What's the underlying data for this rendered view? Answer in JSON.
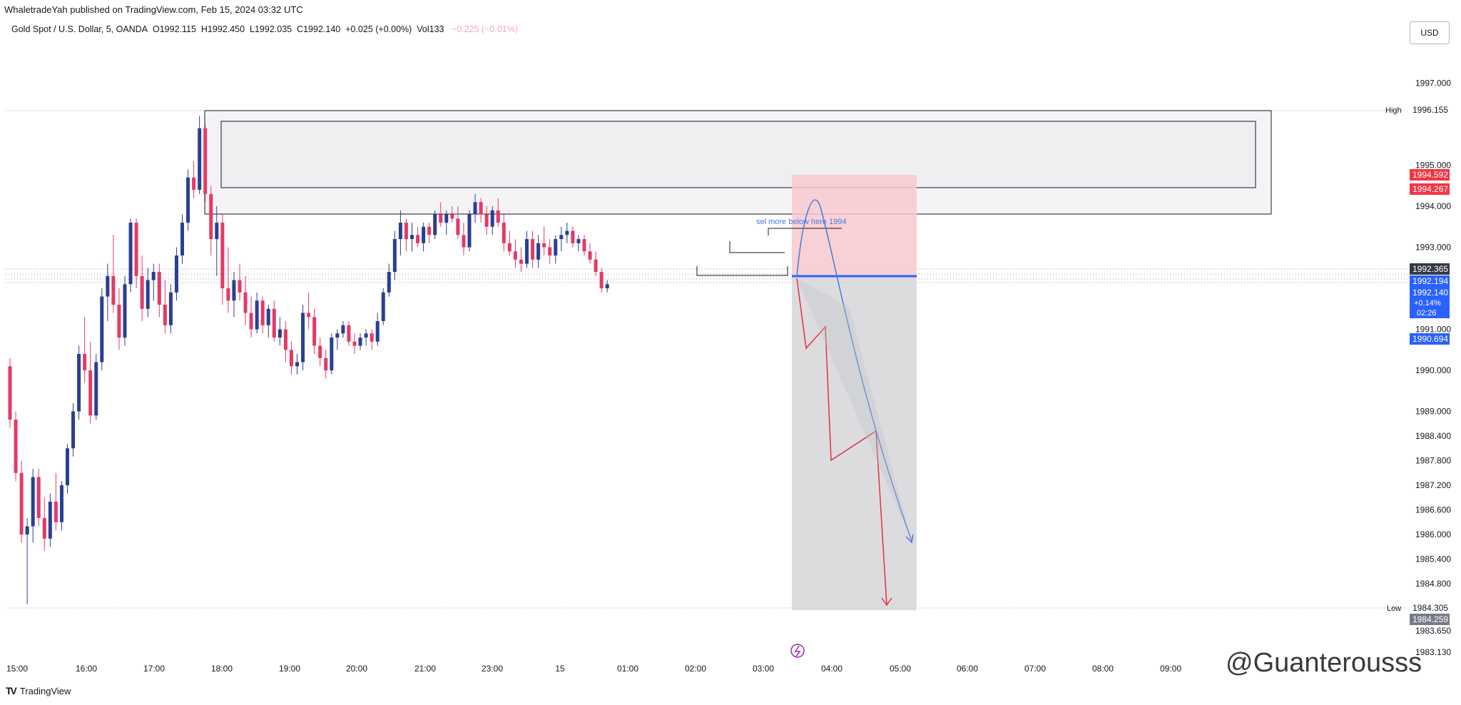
{
  "header": {
    "published": "WhaletradeYah published on TradingView.com, Feb 15, 2024 03:32 UTC",
    "symbol": "Gold Spot / U.S. Dollar, 5, OANDA",
    "open": "O1992.115",
    "high": "H1992.450",
    "low": "L1992.035",
    "close": "C1992.140",
    "change": "+0.025 (+0.00%)",
    "volume": "Vol133",
    "vol_change": "−0.225 (−0.01%)"
  },
  "currency_button": "USD",
  "footer": {
    "brand": "TradingView",
    "logo": "TV"
  },
  "watermark": "@Guanterousss",
  "chart_data": {
    "type": "candlestick",
    "timeframe": "5",
    "y_ticks": [
      1997.0,
      1995.0,
      1994.0,
      1993.0,
      1991.0,
      1990.0,
      1989.0,
      1988.4,
      1987.8,
      1987.2,
      1986.6,
      1986.0,
      1985.4,
      1984.8,
      1983.65,
      1983.13
    ],
    "y_tick_labels": [
      "1997.000",
      "1995.000",
      "1994.000",
      "1993.000",
      "1991.000",
      "1990.000",
      "1989.000",
      "1988.400",
      "1987.800",
      "1987.200",
      "1986.600",
      "1986.000",
      "1985.400",
      "1984.800",
      "1983.650",
      "1983.130"
    ],
    "x_labels": [
      "15:00",
      "16:00",
      "17:00",
      "18:00",
      "19:00",
      "20:00",
      "21:00",
      "23:00",
      "15",
      "01:00",
      "02:00",
      "03:00",
      "04:00",
      "05:00",
      "06:00",
      "07:00",
      "08:00",
      "09:00"
    ],
    "high_label": "High",
    "high_value": "1996.155",
    "low_label": "Low",
    "low_value": "1984.305",
    "low_value_2": "1984.259",
    "price_labels": [
      {
        "value": "1994.592",
        "color": "#f23645"
      },
      {
        "value": "1994.267",
        "color": "#f23645"
      },
      {
        "value": "1992.365",
        "color": "#363a45"
      },
      {
        "value": "1992.194",
        "color": "#2962ff"
      },
      {
        "value": "1992.140",
        "color": "#2962ff"
      },
      {
        "value": "1990.694",
        "color": "#2962ff"
      }
    ],
    "current_price": {
      "value": "1992.140",
      "change": "+0.14%",
      "countdown": "02:26"
    },
    "annotation": "sel more below here 1994",
    "colors": {
      "up": "#2a3f92",
      "down": "#e33a66",
      "blue_line": "#2962ff",
      "stop_zone": "#f7c9cf",
      "target_zone": "#d6d6d8",
      "red_path": "#e03145",
      "blue_path": "#4a78e0"
    },
    "candles": [
      [
        1990.1,
        1990.3,
        1988.6,
        1988.8
      ],
      [
        1988.8,
        1989.0,
        1987.3,
        1987.5
      ],
      [
        1987.5,
        1987.8,
        1985.8,
        1986.0
      ],
      [
        1986.0,
        1986.4,
        1984.3,
        1986.2
      ],
      [
        1986.2,
        1987.6,
        1985.8,
        1987.4
      ],
      [
        1987.4,
        1987.6,
        1986.2,
        1986.4
      ],
      [
        1986.4,
        1986.9,
        1985.6,
        1985.9
      ],
      [
        1985.9,
        1987.0,
        1985.7,
        1986.8
      ],
      [
        1986.8,
        1987.5,
        1986.1,
        1986.3
      ],
      [
        1986.3,
        1987.3,
        1986.1,
        1987.2
      ],
      [
        1987.2,
        1988.2,
        1987.0,
        1988.1
      ],
      [
        1988.1,
        1989.2,
        1987.9,
        1989.0
      ],
      [
        1989.0,
        1990.6,
        1988.8,
        1990.4
      ],
      [
        1990.4,
        1991.3,
        1989.7,
        1990.0
      ],
      [
        1990.0,
        1990.7,
        1988.7,
        1988.9
      ],
      [
        1988.9,
        1990.4,
        1988.8,
        1990.2
      ],
      [
        1990.2,
        1992.0,
        1990.0,
        1991.8
      ],
      [
        1991.8,
        1992.6,
        1991.2,
        1992.3
      ],
      [
        1992.3,
        1993.3,
        1991.4,
        1991.6
      ],
      [
        1991.6,
        1992.0,
        1990.5,
        1990.8
      ],
      [
        1990.8,
        1992.3,
        1990.6,
        1992.1
      ],
      [
        1992.1,
        1993.7,
        1991.9,
        1993.6
      ],
      [
        1993.6,
        1993.7,
        1992.0,
        1992.3
      ],
      [
        1992.3,
        1992.8,
        1991.2,
        1991.5
      ],
      [
        1991.5,
        1992.5,
        1991.3,
        1992.2
      ],
      [
        1992.2,
        1992.6,
        1991.7,
        1992.4
      ],
      [
        1992.4,
        1992.6,
        1991.3,
        1991.6
      ],
      [
        1991.6,
        1992.2,
        1990.9,
        1991.1
      ],
      [
        1991.1,
        1992.1,
        1990.9,
        1991.9
      ],
      [
        1991.9,
        1993.0,
        1991.7,
        1992.8
      ],
      [
        1992.8,
        1993.8,
        1992.6,
        1993.6
      ],
      [
        1993.6,
        1994.9,
        1993.4,
        1994.7
      ],
      [
        1994.7,
        1995.1,
        1994.2,
        1994.4
      ],
      [
        1994.4,
        1996.2,
        1994.3,
        1995.9
      ],
      [
        1995.9,
        1996.0,
        1994.1,
        1994.3
      ],
      [
        1994.3,
        1994.5,
        1992.8,
        1993.2
      ],
      [
        1993.2,
        1994.0,
        1992.3,
        1993.6
      ],
      [
        1993.6,
        1993.8,
        1991.6,
        1992.0
      ],
      [
        1992.0,
        1993.0,
        1991.4,
        1991.7
      ],
      [
        1991.7,
        1992.4,
        1991.3,
        1992.2
      ],
      [
        1992.2,
        1992.6,
        1991.7,
        1991.9
      ],
      [
        1991.9,
        1992.3,
        1991.1,
        1991.4
      ],
      [
        1991.4,
        1991.8,
        1990.8,
        1991.0
      ],
      [
        1991.0,
        1991.9,
        1990.9,
        1991.7
      ],
      [
        1991.7,
        1991.8,
        1990.9,
        1991.1
      ],
      [
        1991.1,
        1991.6,
        1990.8,
        1991.5
      ],
      [
        1991.5,
        1991.7,
        1990.7,
        1990.8
      ],
      [
        1990.8,
        1991.3,
        1990.6,
        1991.0
      ],
      [
        1991.0,
        1991.2,
        1990.2,
        1990.5
      ],
      [
        1990.5,
        1990.7,
        1989.9,
        1990.1
      ],
      [
        1990.1,
        1990.4,
        1989.9,
        1990.2
      ],
      [
        1990.2,
        1991.6,
        1990.0,
        1991.4
      ],
      [
        1991.4,
        1991.9,
        1991.0,
        1991.3
      ],
      [
        1991.3,
        1991.5,
        1990.4,
        1990.6
      ],
      [
        1990.6,
        1990.8,
        1990.1,
        1990.3
      ],
      [
        1990.3,
        1990.5,
        1989.8,
        1990.0
      ],
      [
        1990.0,
        1990.9,
        1989.9,
        1990.8
      ],
      [
        1990.8,
        1991.0,
        1990.5,
        1990.9
      ],
      [
        1990.9,
        1991.2,
        1990.8,
        1991.1
      ],
      [
        1991.1,
        1991.2,
        1990.6,
        1990.7
      ],
      [
        1990.7,
        1990.9,
        1990.4,
        1990.6
      ],
      [
        1990.6,
        1990.9,
        1990.5,
        1990.8
      ],
      [
        1990.8,
        1991.0,
        1990.6,
        1990.9
      ],
      [
        1990.9,
        1991.0,
        1990.5,
        1990.7
      ],
      [
        1990.7,
        1991.4,
        1990.6,
        1991.2
      ],
      [
        1991.2,
        1992.0,
        1991.1,
        1991.9
      ],
      [
        1991.9,
        1992.6,
        1991.8,
        1992.4
      ],
      [
        1992.4,
        1993.4,
        1992.2,
        1993.2
      ],
      [
        1993.2,
        1993.9,
        1992.8,
        1993.6
      ],
      [
        1993.6,
        1993.7,
        1992.9,
        1993.2
      ],
      [
        1993.2,
        1993.6,
        1992.9,
        1993.3
      ],
      [
        1993.3,
        1993.5,
        1993.0,
        1993.1
      ],
      [
        1993.1,
        1993.6,
        1992.9,
        1993.5
      ],
      [
        1993.5,
        1993.6,
        1993.1,
        1993.3
      ],
      [
        1993.3,
        1993.9,
        1993.2,
        1993.8
      ],
      [
        1993.8,
        1994.1,
        1993.5,
        1993.6
      ],
      [
        1993.6,
        1993.9,
        1993.3,
        1993.8
      ],
      [
        1993.8,
        1994.0,
        1993.6,
        1993.7
      ],
      [
        1993.7,
        1994.0,
        1993.2,
        1993.3
      ],
      [
        1993.3,
        1993.6,
        1992.8,
        1993.0
      ],
      [
        1993.0,
        1993.9,
        1992.9,
        1993.8
      ],
      [
        1993.8,
        1994.3,
        1993.6,
        1994.1
      ],
      [
        1994.1,
        1994.2,
        1993.6,
        1993.8
      ],
      [
        1993.8,
        1994.0,
        1993.3,
        1993.5
      ],
      [
        1993.5,
        1994.0,
        1993.3,
        1993.9
      ],
      [
        1993.9,
        1994.2,
        1993.5,
        1993.6
      ],
      [
        1993.6,
        1993.8,
        1992.9,
        1993.1
      ],
      [
        1993.1,
        1993.4,
        1992.8,
        1992.9
      ],
      [
        1992.9,
        1993.2,
        1992.5,
        1992.7
      ],
      [
        1992.7,
        1993.0,
        1992.4,
        1992.6
      ],
      [
        1992.6,
        1993.4,
        1992.5,
        1993.2
      ],
      [
        1993.2,
        1993.4,
        1992.5,
        1992.7
      ],
      [
        1992.7,
        1993.3,
        1992.5,
        1993.1
      ],
      [
        1993.1,
        1993.5,
        1992.8,
        1993.0
      ],
      [
        1993.0,
        1993.2,
        1992.6,
        1992.8
      ],
      [
        1992.8,
        1993.3,
        1992.6,
        1993.2
      ],
      [
        1993.2,
        1993.5,
        1992.9,
        1993.3
      ],
      [
        1993.3,
        1993.6,
        1993.1,
        1993.4
      ],
      [
        1993.4,
        1993.5,
        1993.0,
        1993.1
      ],
      [
        1993.1,
        1993.3,
        1992.9,
        1993.2
      ],
      [
        1993.2,
        1993.3,
        1992.8,
        1992.9
      ],
      [
        1992.9,
        1993.1,
        1992.6,
        1992.7
      ],
      [
        1992.7,
        1992.9,
        1992.3,
        1992.4
      ],
      [
        1992.4,
        1992.5,
        1991.9,
        1992.0
      ],
      [
        1992.0,
        1992.2,
        1991.9,
        1992.1
      ]
    ]
  }
}
